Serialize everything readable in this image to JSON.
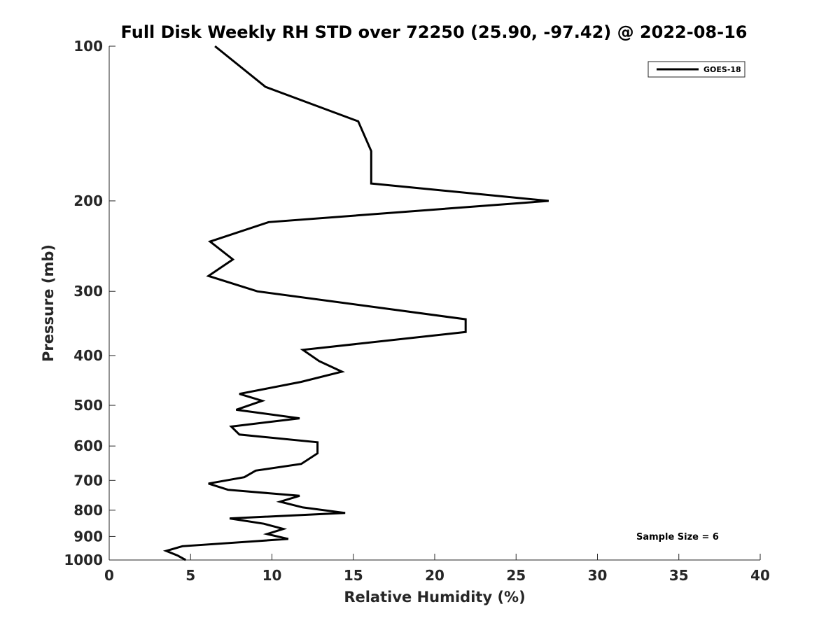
{
  "chart_data": {
    "type": "line",
    "title": "Full Disk Weekly RH STD over 72250 (25.90, -97.42) @ 2022-08-16",
    "xlabel": "Relative Humidity (%)",
    "ylabel": "Pressure (mb)",
    "xlim": [
      0,
      40
    ],
    "ylim": [
      100,
      1000
    ],
    "yscale": "log",
    "y_reversed": true,
    "grid": false,
    "legend_position": "top-right",
    "xticks": [
      0,
      5,
      10,
      15,
      20,
      25,
      30,
      35,
      40
    ],
    "xtick_labels": [
      "0",
      "5",
      "10",
      "15",
      "20",
      "25",
      "30",
      "35",
      "40"
    ],
    "yticks": [
      100,
      200,
      300,
      400,
      500,
      600,
      700,
      800,
      900,
      1000
    ],
    "ytick_labels": [
      "100",
      "200",
      "300",
      "400",
      "500",
      "600",
      "700",
      "800",
      "900",
      "1000"
    ],
    "annotation": "Sample Size = 6",
    "series": [
      {
        "name": "GOES-18",
        "color": "#000000",
        "points": [
          [
            6.5,
            100
          ],
          [
            9.6,
            120
          ],
          [
            15.3,
            140
          ],
          [
            16.1,
            160
          ],
          [
            16.1,
            185
          ],
          [
            27.0,
            200
          ],
          [
            9.8,
            220
          ],
          [
            6.2,
            240
          ],
          [
            7.6,
            260
          ],
          [
            6.1,
            280
          ],
          [
            9.1,
            300
          ],
          [
            21.9,
            340
          ],
          [
            21.9,
            360
          ],
          [
            11.9,
            390
          ],
          [
            12.9,
            410
          ],
          [
            14.3,
            430
          ],
          [
            11.8,
            450
          ],
          [
            8.0,
            475
          ],
          [
            9.4,
            490
          ],
          [
            7.8,
            510
          ],
          [
            11.7,
            530
          ],
          [
            7.5,
            550
          ],
          [
            8.0,
            570
          ],
          [
            12.8,
            590
          ],
          [
            12.8,
            620
          ],
          [
            11.8,
            650
          ],
          [
            9.0,
            670
          ],
          [
            8.3,
            690
          ],
          [
            6.1,
            710
          ],
          [
            7.3,
            730
          ],
          [
            11.7,
            750
          ],
          [
            10.5,
            770
          ],
          [
            11.9,
            790
          ],
          [
            14.5,
            810
          ],
          [
            7.4,
            830
          ],
          [
            9.5,
            850
          ],
          [
            10.7,
            870
          ],
          [
            9.7,
            890
          ],
          [
            11.0,
            910
          ],
          [
            4.5,
            940
          ],
          [
            3.5,
            960
          ],
          [
            4.2,
            980
          ],
          [
            4.7,
            1000
          ]
        ]
      }
    ]
  }
}
